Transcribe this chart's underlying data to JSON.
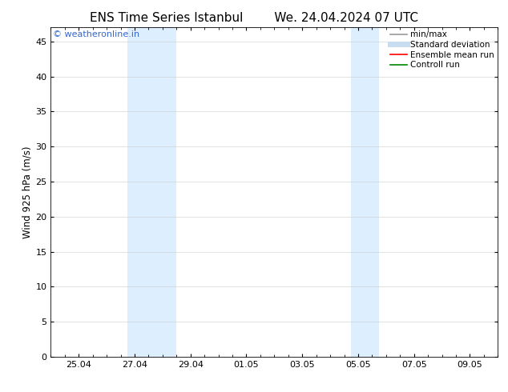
{
  "title_left": "ENS Time Series Istanbul",
  "title_right": "We. 24.04.2024 07 UTC",
  "ylabel": "Wind 925 hPa (m/s)",
  "ylim": [
    0,
    47
  ],
  "yticks": [
    0,
    5,
    10,
    15,
    20,
    25,
    30,
    35,
    40,
    45
  ],
  "xlim": [
    0,
    16
  ],
  "xtick_positions": [
    1,
    3,
    5,
    7,
    9,
    11,
    13,
    15
  ],
  "xtick_labels": [
    "25.04",
    "27.04",
    "29.04",
    "01.05",
    "03.05",
    "05.05",
    "07.05",
    "09.05"
  ],
  "background_color": "#ffffff",
  "shaded_regions": [
    {
      "xstart": 2.75,
      "xend": 3.5,
      "color": "#ddeeff"
    },
    {
      "xstart": 3.5,
      "xend": 4.5,
      "color": "#ddeeff"
    },
    {
      "xstart": 10.75,
      "xend": 11.25,
      "color": "#ddeeff"
    },
    {
      "xstart": 11.25,
      "xend": 11.75,
      "color": "#ddeeff"
    }
  ],
  "watermark_text": "© weatheronline.in",
  "watermark_color": "#3366cc",
  "legend_items": [
    {
      "label": "min/max",
      "color": "#999999",
      "lw": 1.2
    },
    {
      "label": "Standard deviation",
      "color": "#c8ddf0",
      "lw": 5
    },
    {
      "label": "Ensemble mean run",
      "color": "#ff0000",
      "lw": 1.2
    },
    {
      "label": "Controll run",
      "color": "#008800",
      "lw": 1.2
    }
  ],
  "title_fontsize": 11,
  "ylabel_fontsize": 8.5,
  "tick_fontsize": 8,
  "legend_fontsize": 7.5,
  "watermark_fontsize": 8
}
